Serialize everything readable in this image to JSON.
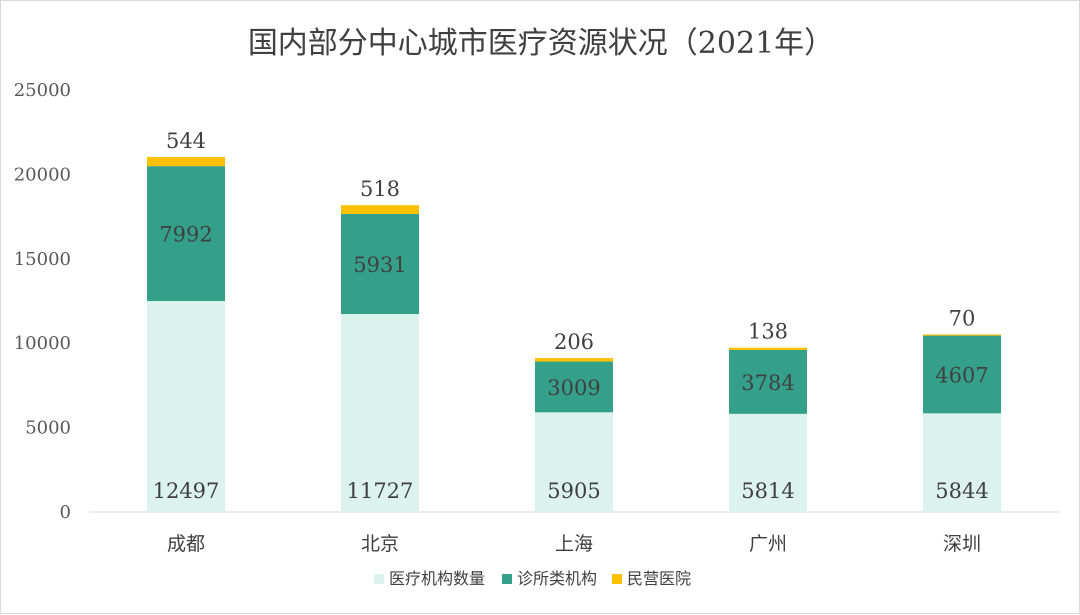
{
  "chart_data": {
    "type": "bar",
    "stacked": true,
    "title": "国内部分中心城市医疗资源状况（2021年）",
    "categories": [
      "成都",
      "北京",
      "上海",
      "广州",
      "深圳"
    ],
    "series": [
      {
        "name": "医疗机构数量",
        "color": "#dbf2ed",
        "values": [
          12497,
          11727,
          5905,
          5814,
          5844
        ]
      },
      {
        "name": "诊所类机构",
        "color": "#35a08a",
        "values": [
          7992,
          5931,
          3009,
          3784,
          4607
        ]
      },
      {
        "name": "民营医院",
        "color": "#ffc000",
        "values": [
          544,
          518,
          206,
          138,
          70
        ]
      }
    ],
    "ylim": [
      0,
      25000
    ],
    "yticks": [
      0,
      5000,
      10000,
      15000,
      20000,
      25000
    ],
    "grid": false,
    "legend": "bottom",
    "data_labels": true
  }
}
